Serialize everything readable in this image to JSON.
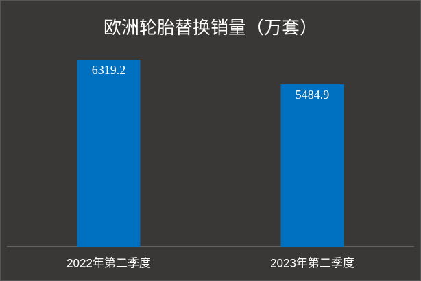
{
  "chart_data": {
    "type": "bar",
    "title": "欧洲轮胎替换销量（万套）",
    "categories": [
      "2022年第二季度",
      "2023年第二季度"
    ],
    "values": [
      6319.2,
      5484.9
    ],
    "color": "#0070c0"
  }
}
